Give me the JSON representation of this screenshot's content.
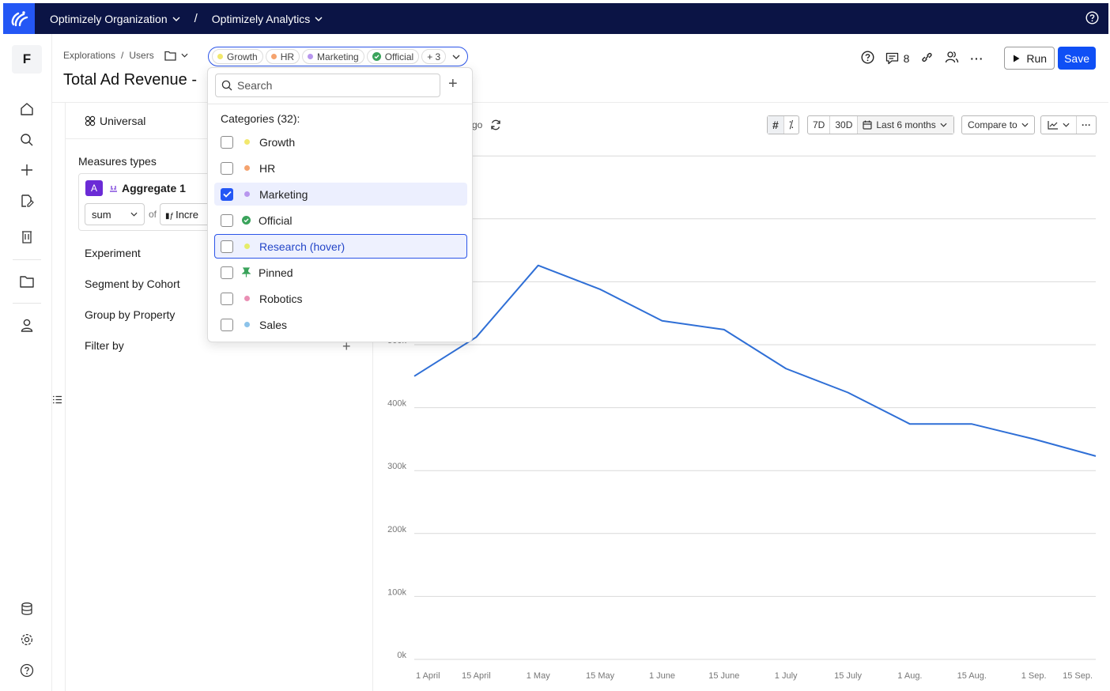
{
  "topbar": {
    "org": "Optimizely Organization",
    "separator": "/",
    "app": "Optimizely Analytics"
  },
  "rail": {
    "workspace_initial": "F"
  },
  "header": {
    "breadcrumb": [
      "Explorations",
      "/",
      "Users"
    ],
    "title": "Total Ad Revenue -",
    "tags": [
      {
        "label": "Growth",
        "color": "#f2e86d"
      },
      {
        "label": "HR",
        "color": "#f5a36e"
      },
      {
        "label": "Marketing",
        "color": "#b896ee"
      },
      {
        "label": "Official",
        "color": "#3aa35b"
      }
    ],
    "tags_more": "+ 3",
    "comments_count": "8",
    "run_label": "Run",
    "save_label": "Save"
  },
  "panel": {
    "universal_label": "Universal",
    "measures_types_label": "Measures types",
    "aggregate": {
      "badge": "A",
      "name": "Aggregate 1",
      "function": "sum",
      "of_label": "of",
      "metric": "Incre"
    },
    "sections": [
      "Experiment",
      "Segment by Cohort",
      "Group by Property",
      "Filter by"
    ]
  },
  "toolbar": {
    "ago_text": "go",
    "range_7d": "7D",
    "range_30d": "30D",
    "date_range": "Last 6 months",
    "compare": "Compare to"
  },
  "dropdown": {
    "search_placeholder": "Search",
    "categories_header": "Categories (32):",
    "options": [
      {
        "label": "Growth",
        "checked": false,
        "color": "#f2e86d",
        "icon": "dot"
      },
      {
        "label": "HR",
        "checked": false,
        "color": "#f5a36e",
        "icon": "dot"
      },
      {
        "label": "Marketing",
        "checked": true,
        "color": "#b896ee",
        "icon": "dot"
      },
      {
        "label": "Official",
        "checked": false,
        "color": "#3aa35b",
        "icon": "check-circle"
      },
      {
        "label": "Research (hover)",
        "checked": false,
        "color": "#e5ec6a",
        "icon": "dot"
      },
      {
        "label": "Pinned",
        "checked": false,
        "color": "#3aa35b",
        "icon": "pin"
      },
      {
        "label": "Robotics",
        "checked": false,
        "color": "#ea8fb4",
        "icon": "dot"
      },
      {
        "label": "Sales",
        "checked": false,
        "color": "#8cc3ea",
        "icon": "dot"
      }
    ]
  },
  "colors": {
    "nav_bg": "#0b1445",
    "accent": "#2457f5",
    "line": "#2f6fd6"
  },
  "chart_data": {
    "type": "line",
    "x": [
      "1 April",
      "15 April",
      "1 May",
      "15 May",
      "1 June",
      "15 June",
      "1 July",
      "15 July",
      "1 Aug.",
      "15 Aug.",
      "1 Sep.",
      "15 Sep."
    ],
    "y_ticks": [
      "0k",
      "100k",
      "200k",
      "300k",
      "400k",
      "500k"
    ],
    "ylim": [
      0,
      800000
    ],
    "series": [
      {
        "values": [
          450000,
          512000,
          626000,
          588000,
          538000,
          524000,
          462000,
          424000,
          374000,
          374000,
          350000,
          323000
        ]
      }
    ],
    "grid": true
  }
}
